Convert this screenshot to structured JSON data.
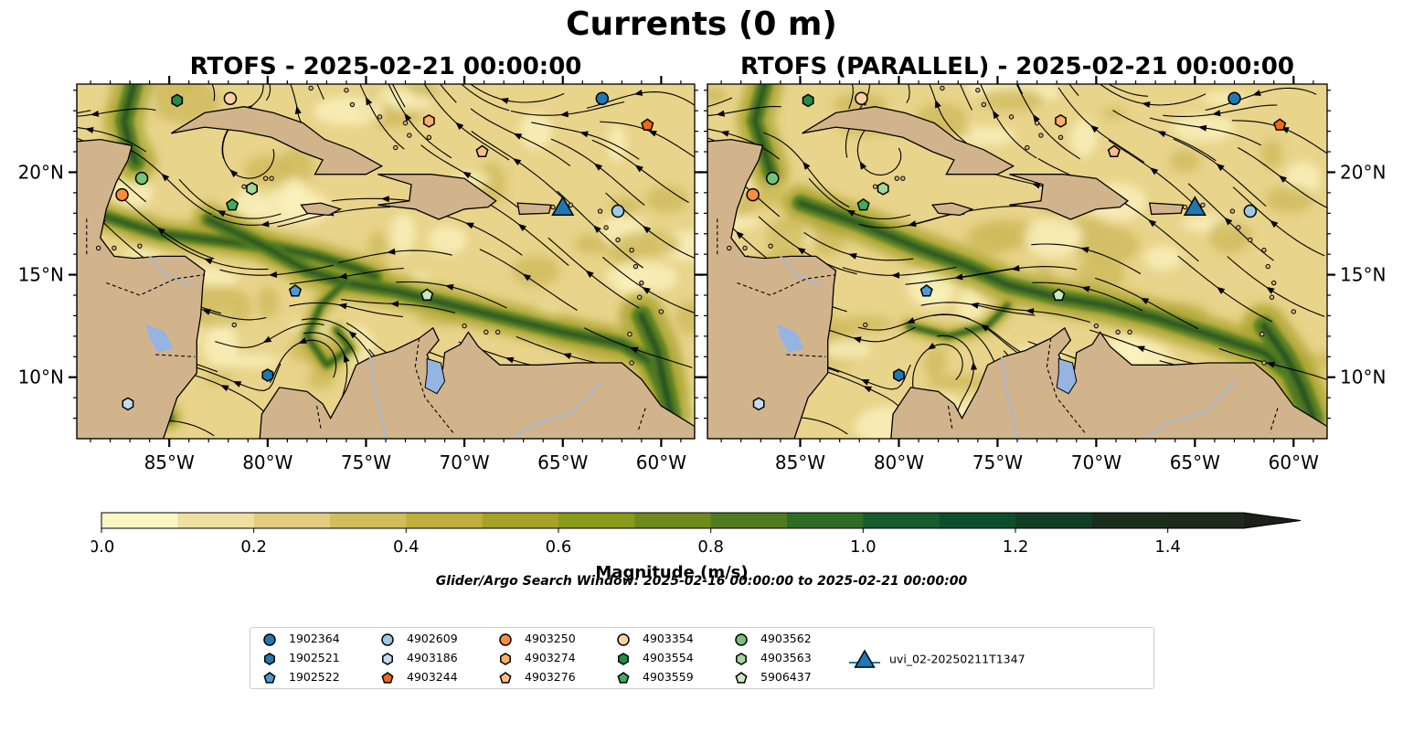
{
  "figure": {
    "suptitle": "Currents (0 m)",
    "search_window": "Glider/Argo Search Window: 2025-02-16 00:00:00 to 2025-02-21 00:00:00"
  },
  "chart_data": [
    {
      "type": "heatmap",
      "title": "RTOFS - 2025-02-21 00:00:00",
      "xlim": [
        -89.7,
        -58.3
      ],
      "ylim": [
        7,
        24.3
      ],
      "xticks": [
        "85°W",
        "80°W",
        "75°W",
        "70°W",
        "65°W",
        "60°W"
      ],
      "yticks": [
        "10°N",
        "15°N",
        "20°N"
      ],
      "ytick_side": "left"
    },
    {
      "type": "heatmap",
      "title": "RTOFS (PARALLEL) - 2025-02-21 00:00:00",
      "xlim": [
        -89.7,
        -58.3
      ],
      "ylim": [
        7,
        24.3
      ],
      "xticks": [
        "85°W",
        "80°W",
        "75°W",
        "70°W",
        "65°W",
        "60°W"
      ],
      "yticks": [
        "10°N",
        "15°N",
        "20°N"
      ],
      "ytick_side": "right"
    }
  ],
  "colorbar": {
    "label": "Magnitude (m/s)",
    "min": 0,
    "max": 1.5,
    "step": 0.1,
    "extend": "max",
    "ticks": [
      "0.0",
      "0.2",
      "0.4",
      "0.6",
      "0.8",
      "1.0",
      "1.2",
      "1.4"
    ],
    "colors": [
      "#fbf6c4",
      "#efe0a0",
      "#e2cc7e",
      "#d3bc5c",
      "#c2ae3e",
      "#a5a12a",
      "#8a9a1c",
      "#6d8a1a",
      "#4f7c20",
      "#2f6c26",
      "#165c2c",
      "#0d4e2c",
      "#133e26",
      "#1a2e1c",
      "#1c2a1a"
    ],
    "extend_color": "#192118"
  },
  "colors": {
    "land": "#d2b48c",
    "lake": "#96b4e2",
    "river": "#a8b8d0"
  },
  "markers": [
    {
      "id": "1902364",
      "shape": "circle",
      "color": "#1f77b4",
      "lon": -63.0,
      "lat": 23.6
    },
    {
      "id": "1902521",
      "shape": "hexagon",
      "color": "#1f77b4",
      "lon": -80.0,
      "lat": 10.1
    },
    {
      "id": "1902522",
      "shape": "pentagon",
      "color": "#4a9ad6",
      "lon": -78.6,
      "lat": 14.2
    },
    {
      "id": "4902609",
      "shape": "circle",
      "color": "#9ecae1",
      "lon": -62.2,
      "lat": 18.1
    },
    {
      "id": "4903186",
      "shape": "hexagon",
      "color": "#c6dbef",
      "lon": -87.1,
      "lat": 8.7
    },
    {
      "id": "4903244",
      "shape": "pentagon",
      "color": "#f16913",
      "lon": -60.7,
      "lat": 22.3
    },
    {
      "id": "4903250",
      "shape": "circle",
      "color": "#fd8d3c",
      "lon": -87.4,
      "lat": 18.9
    },
    {
      "id": "4903274",
      "shape": "hexagon",
      "color": "#fdae6b",
      "lon": -71.8,
      "lat": 22.5
    },
    {
      "id": "4903276",
      "shape": "pentagon",
      "color": "#fdbe85",
      "lon": -69.1,
      "lat": 21.0
    },
    {
      "id": "4903354",
      "shape": "circle",
      "color": "#fdd0a2",
      "lon": -81.9,
      "lat": 23.6
    },
    {
      "id": "4903554",
      "shape": "hexagon",
      "color": "#238b45",
      "lon": -84.6,
      "lat": 23.5
    },
    {
      "id": "4903559",
      "shape": "pentagon",
      "color": "#41ab5d",
      "lon": -81.8,
      "lat": 18.4
    },
    {
      "id": "4903562",
      "shape": "circle",
      "color": "#74c476",
      "lon": -86.4,
      "lat": 19.7
    },
    {
      "id": "4903563",
      "shape": "hexagon",
      "color": "#a1d99b",
      "lon": -80.8,
      "lat": 19.2
    },
    {
      "id": "5906437",
      "shape": "pentagon",
      "color": "#c7e9c0",
      "lon": -71.9,
      "lat": 14.0
    },
    {
      "id": "uvi_02-20250211T1347",
      "shape": "triangle",
      "color": "#1f77b4",
      "lon": -65.0,
      "lat": 18.2
    }
  ]
}
